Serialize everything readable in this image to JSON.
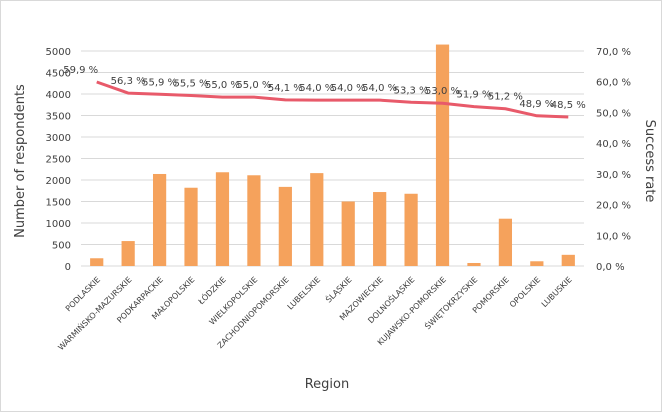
{
  "chart_data": {
    "type": "bar",
    "xlabel": "Region",
    "ylabel_left": "Number of respondents",
    "ylabel_right": "Success rate",
    "ylim_left": [
      0,
      5000
    ],
    "yticks_left": [
      "0",
      "500",
      "1000",
      "1500",
      "2000",
      "2500",
      "3000",
      "3500",
      "4000",
      "4500",
      "5000"
    ],
    "ylim_right": [
      0,
      70
    ],
    "yticks_right": [
      "0,0 %",
      "10,0 %",
      "20,0 %",
      "30,0 %",
      "40,0 %",
      "50,0 %",
      "60,0 %",
      "70,0 %"
    ],
    "grid": true,
    "categories": [
      "PODLASKIE",
      "WARMIŃSKO-MAZURSKIE",
      "PODKARPACKIE",
      "MAŁOPOLSKIE",
      "ŁÓDZKIE",
      "WIELKOPOLSKIE",
      "ZACHODNIOPOMORSKIE",
      "LUBELSKIE",
      "ŚLĄSKIE",
      "MAZOWIECKIE",
      "DOLNOŚLĄSKIE",
      "KUJAWSKO-POMORSKIE",
      "ŚWIĘTOKRZYSKIE",
      "POMORSKIE",
      "OPOLSKIE",
      "LUBUSKIE"
    ],
    "series": [
      {
        "type": "bar",
        "axis": "left",
        "color": "#f5a25c",
        "values": [
          180,
          580,
          2140,
          1820,
          2180,
          2110,
          1840,
          2160,
          1500,
          1720,
          1680,
          5150,
          70,
          1100,
          110,
          260
        ]
      },
      {
        "type": "line",
        "axis": "right",
        "color": "#e85a6a",
        "values": [
          59.9,
          56.3,
          55.9,
          55.5,
          55.0,
          55.0,
          54.1,
          54.0,
          54.0,
          54.0,
          53.3,
          53.0,
          51.9,
          51.2,
          48.9,
          48.5
        ],
        "labels": [
          "59,9 %",
          "56,3 %",
          "55,9 %",
          "55,5 %",
          "55,0 %",
          "55,0 %",
          "54,1 %",
          "54,0 %",
          "54,0 %",
          "54,0 %",
          "53,3 %",
          "53,0 %",
          "51,9 %",
          "51,2 %",
          "48,9 %",
          "48,5 %"
        ]
      }
    ]
  }
}
